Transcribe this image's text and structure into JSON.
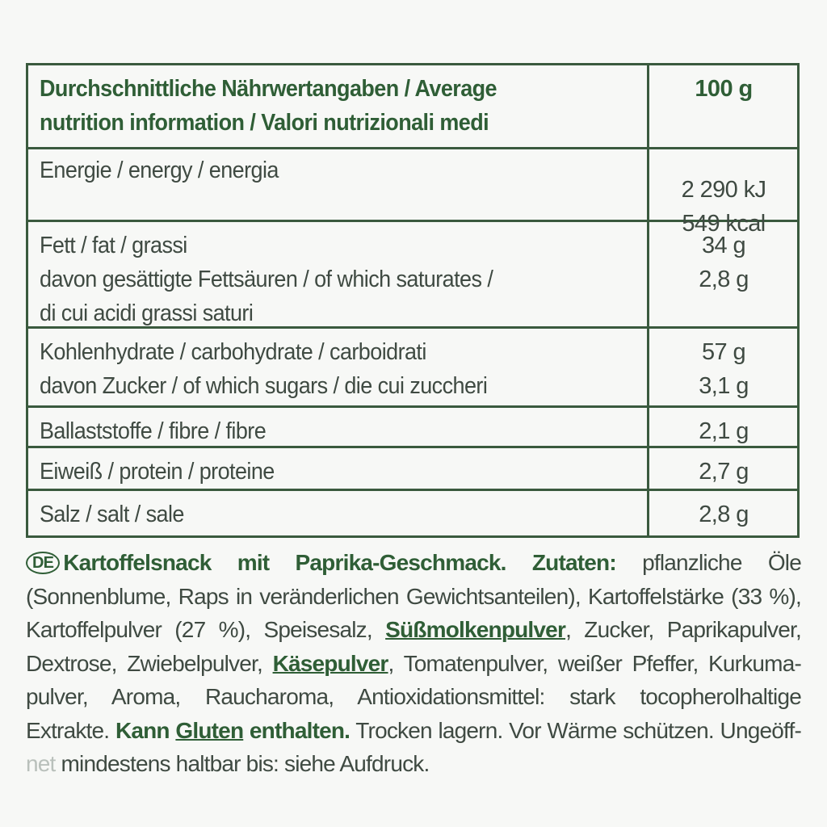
{
  "table": {
    "header": {
      "label_line1": "Durchschnittliche Nährwertangaben / Average",
      "label_line2": "nutrition information / Valori nutrizionali medi",
      "column": "100 g"
    },
    "rows": [
      {
        "labels": [
          "Energie / energy / energia"
        ],
        "values": [
          "",
          "2 290 kJ",
          "549 kcal"
        ]
      },
      {
        "labels": [
          "Fett / fat / grassi",
          "davon gesättigte Fettsäuren / of which saturates /",
          "di cui acidi grassi saturi"
        ],
        "values": [
          "34 g",
          "2,8 g"
        ]
      },
      {
        "labels": [
          "Kohlenhydrate / carbohydrate / carboidrati",
          "davon Zucker / of which sugars / die cui zuccheri"
        ],
        "values": [
          "57 g",
          "3,1 g"
        ]
      },
      {
        "labels": [
          "Ballaststoffe / fibre / fibre"
        ],
        "values": [
          "2,1 g"
        ]
      },
      {
        "labels": [
          "Eiweiß / protein / proteine"
        ],
        "values": [
          "2,7 g"
        ]
      },
      {
        "labels": [
          "Salz / salt / sale"
        ],
        "values": [
          "2,8 g"
        ]
      }
    ]
  },
  "ingredients": {
    "lang_badge": "DE",
    "lines": [
      [
        {
          "t": "Kartoffelsnack mit Paprika-Geschmack. Zutaten:",
          "s": "b"
        },
        {
          "t": " pflanzliche Öle",
          "s": ""
        }
      ],
      [
        {
          "t": "(Sonnenblume, Raps in veränderlichen Gewichtsanteilen), Kartoffelstärke (33 %),",
          "s": ""
        }
      ],
      [
        {
          "t": "Kartoffelpulver (27 %), Speisesalz, ",
          "s": ""
        },
        {
          "t": "Süßmolkenpulver",
          "s": "b u"
        },
        {
          "t": ", Zucker, Paprikapulver,",
          "s": ""
        }
      ],
      [
        {
          "t": "Dextrose, Zwiebelpulver, ",
          "s": ""
        },
        {
          "t": "Käsepulver",
          "s": "b u"
        },
        {
          "t": ", Tomatenpulver, weißer Pfeffer, Kurkuma-",
          "s": ""
        }
      ],
      [
        {
          "t": "pulver, Aroma, Raucharoma, Antioxidationsmittel: stark tocopherolhaltige",
          "s": ""
        }
      ],
      [
        {
          "t": "Extrakte. ",
          "s": ""
        },
        {
          "t": "Kann ",
          "s": "b"
        },
        {
          "t": "Gluten",
          "s": "b u"
        },
        {
          "t": " enthalten.",
          "s": "b"
        },
        {
          "t": " Trocken lagern. Vor Wärme schützen. Ungeöff-",
          "s": ""
        }
      ],
      [
        {
          "t": "net",
          "s": "faded"
        },
        {
          "t": " mindestens haltbar bis: siehe Aufdruck.",
          "s": ""
        }
      ]
    ]
  },
  "colors": {
    "green": "#2f5e36",
    "text": "#3f4a42",
    "border": "#3a5a3e"
  }
}
